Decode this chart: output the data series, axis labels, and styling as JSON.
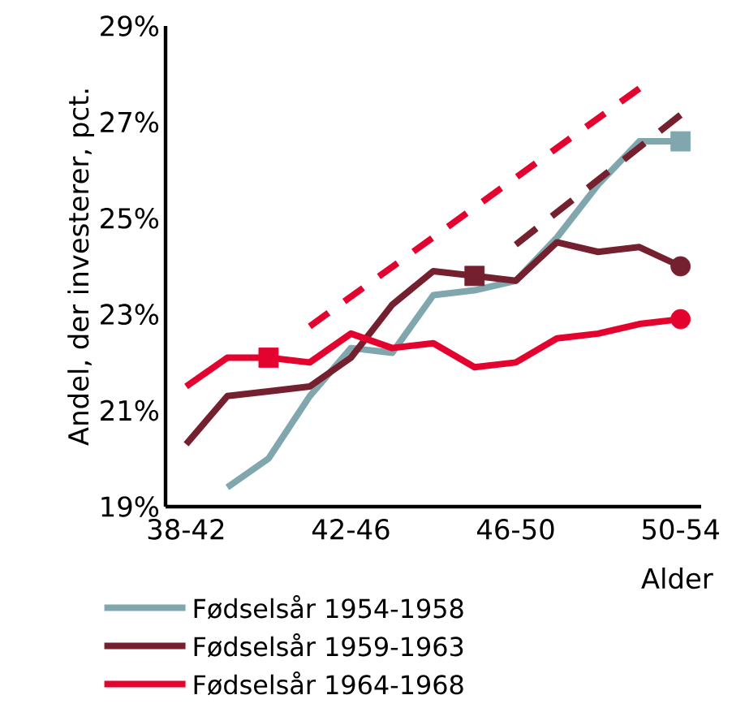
{
  "chart_data": {
    "type": "line",
    "ylabel": "Andel, der investerer, pct.",
    "xlabel": "Alder",
    "categories": [
      "38-42",
      null,
      null,
      null,
      "42-46",
      null,
      null,
      null,
      "46-50",
      null,
      null,
      null,
      "50-54"
    ],
    "ylim": [
      19,
      29
    ],
    "yticks": [
      {
        "value": 19,
        "label": "19%"
      },
      {
        "value": 21,
        "label": "21%"
      },
      {
        "value": 23,
        "label": "23%"
      },
      {
        "value": 25,
        "label": "25%"
      },
      {
        "value": 27,
        "label": "27%"
      },
      {
        "value": 29,
        "label": "29%"
      }
    ],
    "legend": "bottom",
    "series": [
      {
        "name": "Fødselsår 1954-1958",
        "color": "#7fa7ad",
        "values": [
          null,
          19.4,
          20.0,
          21.3,
          22.3,
          22.2,
          23.4,
          23.5,
          23.7,
          24.6,
          25.7,
          26.6,
          26.6
        ]
      },
      {
        "name": "Fødselsår 1959-1963",
        "color": "#74202e",
        "values": [
          20.3,
          21.3,
          21.4,
          21.5,
          22.1,
          23.2,
          23.9,
          23.8,
          23.7,
          24.5,
          24.3,
          24.4,
          24.0
        ]
      },
      {
        "name": "Fødselsår 1964-1968",
        "color": "#e4032e",
        "values": [
          21.5,
          22.1,
          22.1,
          22.0,
          22.6,
          22.3,
          22.4,
          21.9,
          22.0,
          22.5,
          22.6,
          22.8,
          22.9
        ]
      },
      {
        "color": "#e4032e",
        "line_style": "dashed",
        "values": [
          null,
          null,
          null,
          22.75,
          null,
          null,
          null,
          null,
          null,
          null,
          null,
          27.7,
          null
        ]
      },
      {
        "color": "#74202e",
        "line_style": "dashed",
        "values": [
          null,
          null,
          null,
          null,
          null,
          null,
          null,
          null,
          24.45,
          null,
          null,
          null,
          27.15
        ]
      },
      {
        "type": "scatter",
        "marker": "square",
        "color": "#7fa7ad",
        "values": [
          null,
          null,
          null,
          null,
          null,
          null,
          null,
          null,
          null,
          null,
          null,
          null,
          26.6
        ]
      },
      {
        "type": "scatter",
        "marker": "square",
        "color": "#74202e",
        "values": [
          null,
          null,
          null,
          null,
          null,
          null,
          null,
          23.8,
          null,
          null,
          null,
          null,
          null
        ]
      },
      {
        "type": "scatter",
        "marker": "circle",
        "color": "#74202e",
        "values": [
          null,
          null,
          null,
          null,
          null,
          null,
          null,
          null,
          null,
          null,
          null,
          null,
          24.0
        ]
      },
      {
        "type": "scatter",
        "marker": "square",
        "color": "#e4032e",
        "values": [
          null,
          null,
          22.1,
          null,
          null,
          null,
          null,
          null,
          null,
          null,
          null,
          null,
          null
        ]
      },
      {
        "type": "scatter",
        "marker": "circle",
        "color": "#e4032e",
        "values": [
          null,
          null,
          null,
          null,
          null,
          null,
          null,
          null,
          null,
          null,
          null,
          null,
          22.9
        ]
      }
    ]
  }
}
